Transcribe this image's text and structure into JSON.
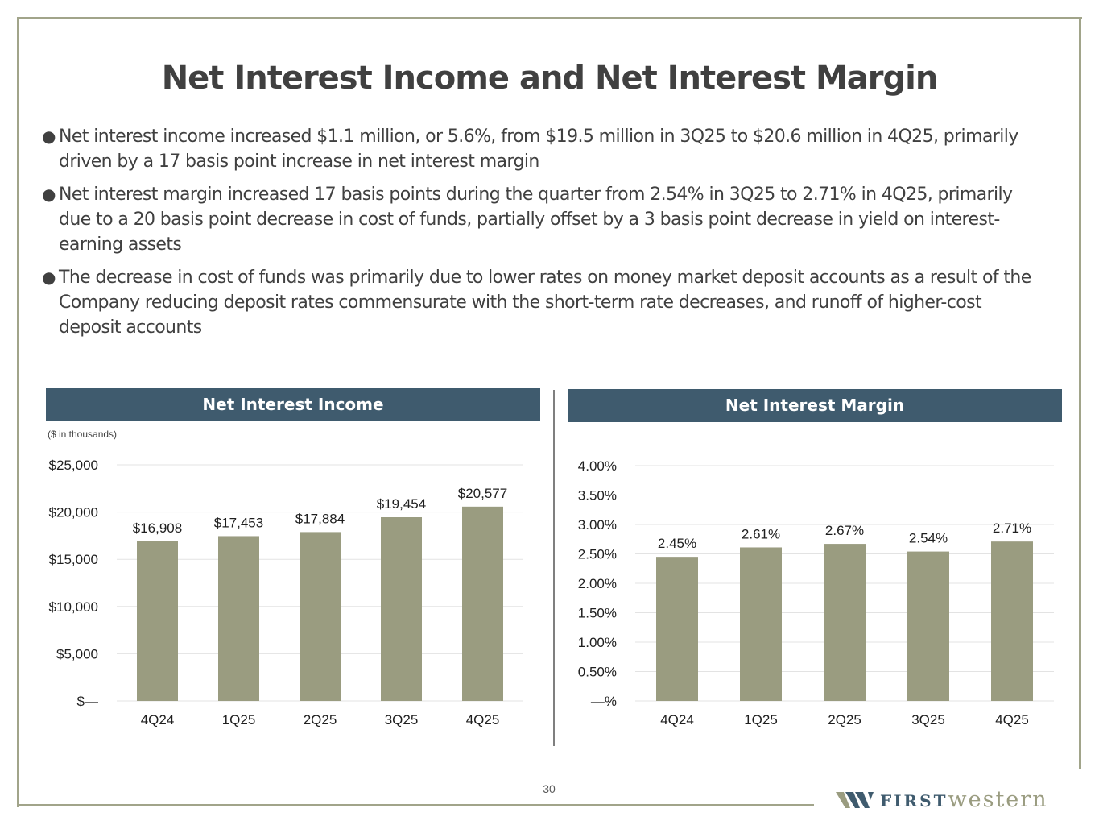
{
  "title": "Net Interest Income and Net Interest Margin",
  "bullets": [
    "Net interest income increased $1.1 million, or 5.6%, from $19.5 million in 3Q25 to $20.6 million in 4Q25, primarily driven by a 17 basis point increase in net interest margin",
    "Net interest margin increased 17 basis points during the quarter from 2.54% in 3Q25 to 2.71% in 4Q25, primarily due to a 20 basis point decrease in cost of funds, partially offset by a 3 basis point  decrease in yield on interest-earning assets",
    "The decrease in cost of funds was primarily due to lower rates on money market deposit accounts as a result of the Company reducing deposit rates commensurate with the short-term rate decreases, and runoff of higher-cost deposit accounts"
  ],
  "page_number": "30",
  "logo": {
    "word1": "FIRST",
    "word2": "western"
  },
  "colors": {
    "bar": "#9a9c80",
    "header": "#3f5b6e",
    "frame": "#a1a48a",
    "grid": "#e3e3e3"
  },
  "chart_data": [
    {
      "type": "bar",
      "title": "Net Interest Income",
      "subtitle": "($ in thousands)",
      "categories": [
        "4Q24",
        "1Q25",
        "2Q25",
        "3Q25",
        "4Q25"
      ],
      "values": [
        16908,
        17453,
        17884,
        19454,
        20577
      ],
      "data_labels": [
        "$16,908",
        "$17,453",
        "$17,884",
        "$19,454",
        "$20,577"
      ],
      "ylim": [
        0,
        25000
      ],
      "yticks": [
        0,
        5000,
        10000,
        15000,
        20000,
        25000
      ],
      "ytick_labels": [
        "$—",
        "$5,000",
        "$10,000",
        "$15,000",
        "$20,000",
        "$25,000"
      ],
      "grid": true,
      "legend": "none"
    },
    {
      "type": "bar",
      "title": "Net Interest Margin",
      "categories": [
        "4Q24",
        "1Q25",
        "2Q25",
        "3Q25",
        "4Q25"
      ],
      "values": [
        2.45,
        2.61,
        2.67,
        2.54,
        2.71
      ],
      "data_labels": [
        "2.45%",
        "2.61%",
        "2.67%",
        "2.54%",
        "2.71%"
      ],
      "ylim": [
        0,
        4
      ],
      "yticks": [
        0,
        0.5,
        1,
        1.5,
        2,
        2.5,
        3,
        3.5,
        4
      ],
      "ytick_labels": [
        "—%",
        "0.50%",
        "1.00%",
        "1.50%",
        "2.00%",
        "2.50%",
        "3.00%",
        "3.50%",
        "4.00%"
      ],
      "grid": true,
      "legend": "none"
    }
  ]
}
